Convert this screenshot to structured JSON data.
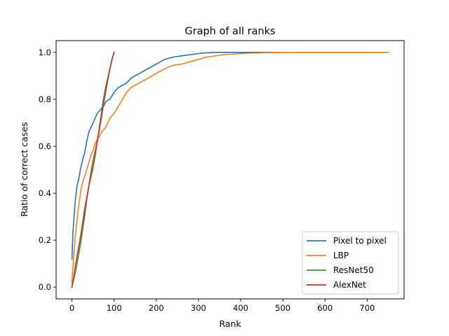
{
  "chart_data": {
    "type": "line",
    "title": "Graph of all ranks",
    "xlabel": "Rank",
    "ylabel": "Ratio of correct cases",
    "xlim": [
      -37.5,
      787.5
    ],
    "ylim": [
      -0.05,
      1.05
    ],
    "x_ticks": [
      0,
      100,
      200,
      300,
      400,
      500,
      600,
      700
    ],
    "y_ticks": [
      0.0,
      0.2,
      0.4,
      0.6,
      0.8,
      1.0
    ],
    "x_tick_labels": [
      "0",
      "100",
      "200",
      "300",
      "400",
      "500",
      "600",
      "700"
    ],
    "y_tick_labels": [
      "0.0",
      "0.2",
      "0.4",
      "0.6",
      "0.8",
      "1.0"
    ],
    "grid": false,
    "legend_position": "lower-right",
    "series": [
      {
        "name": "Pixel to pixel",
        "color": "#1f77b4",
        "x": [
          0,
          2,
          5,
          8,
          12,
          16,
          20,
          25,
          30,
          35,
          40,
          45,
          50,
          55,
          60,
          65,
          70,
          75,
          80,
          90,
          100,
          110,
          120,
          130,
          140,
          150,
          160,
          170,
          180,
          200,
          220,
          240,
          260,
          280,
          300,
          320,
          340,
          360,
          400,
          450,
          500,
          550,
          600,
          650,
          700,
          750
        ],
        "y": [
          0.12,
          0.22,
          0.3,
          0.37,
          0.43,
          0.46,
          0.5,
          0.54,
          0.57,
          0.62,
          0.66,
          0.68,
          0.7,
          0.72,
          0.74,
          0.75,
          0.76,
          0.77,
          0.79,
          0.8,
          0.83,
          0.85,
          0.86,
          0.87,
          0.89,
          0.9,
          0.91,
          0.92,
          0.93,
          0.95,
          0.97,
          0.98,
          0.985,
          0.99,
          0.995,
          0.998,
          1.0,
          1.0,
          1.0,
          1.0,
          1.0,
          1.0,
          1.0,
          1.0,
          1.0,
          1.0
        ]
      },
      {
        "name": "LBP",
        "color": "#ff7f0e",
        "x": [
          0,
          3,
          6,
          10,
          14,
          18,
          22,
          26,
          30,
          35,
          40,
          45,
          50,
          55,
          60,
          65,
          70,
          75,
          80,
          90,
          100,
          110,
          120,
          130,
          140,
          150,
          160,
          170,
          180,
          200,
          220,
          240,
          260,
          280,
          300,
          320,
          340,
          360,
          400,
          450,
          500,
          550,
          600,
          650,
          700,
          750
        ],
        "y": [
          0.02,
          0.1,
          0.18,
          0.25,
          0.32,
          0.37,
          0.42,
          0.45,
          0.47,
          0.5,
          0.53,
          0.56,
          0.58,
          0.61,
          0.63,
          0.64,
          0.66,
          0.67,
          0.68,
          0.72,
          0.74,
          0.77,
          0.8,
          0.83,
          0.85,
          0.86,
          0.87,
          0.88,
          0.89,
          0.91,
          0.93,
          0.945,
          0.95,
          0.96,
          0.97,
          0.98,
          0.985,
          0.99,
          0.995,
          0.998,
          1.0,
          1.0,
          1.0,
          1.0,
          1.0,
          1.0
        ]
      },
      {
        "name": "ResNet50",
        "color": "#2ca02c",
        "x": [
          0,
          5,
          10,
          15,
          20,
          25,
          30,
          35,
          40,
          45,
          50,
          55,
          60,
          65,
          70,
          75,
          80,
          85,
          90,
          95,
          100
        ],
        "y": [
          0.0,
          0.04,
          0.08,
          0.13,
          0.18,
          0.24,
          0.3,
          0.37,
          0.43,
          0.49,
          0.54,
          0.58,
          0.62,
          0.67,
          0.72,
          0.78,
          0.83,
          0.88,
          0.93,
          0.97,
          1.0
        ]
      },
      {
        "name": "AlexNet",
        "color": "#d62728",
        "x": [
          0,
          5,
          10,
          15,
          20,
          25,
          30,
          35,
          40,
          45,
          50,
          55,
          60,
          65,
          70,
          75,
          80,
          85,
          90,
          95,
          100
        ],
        "y": [
          0.0,
          0.05,
          0.11,
          0.16,
          0.21,
          0.27,
          0.33,
          0.38,
          0.43,
          0.47,
          0.51,
          0.56,
          0.62,
          0.68,
          0.74,
          0.8,
          0.85,
          0.89,
          0.93,
          0.97,
          1.0
        ]
      }
    ]
  }
}
